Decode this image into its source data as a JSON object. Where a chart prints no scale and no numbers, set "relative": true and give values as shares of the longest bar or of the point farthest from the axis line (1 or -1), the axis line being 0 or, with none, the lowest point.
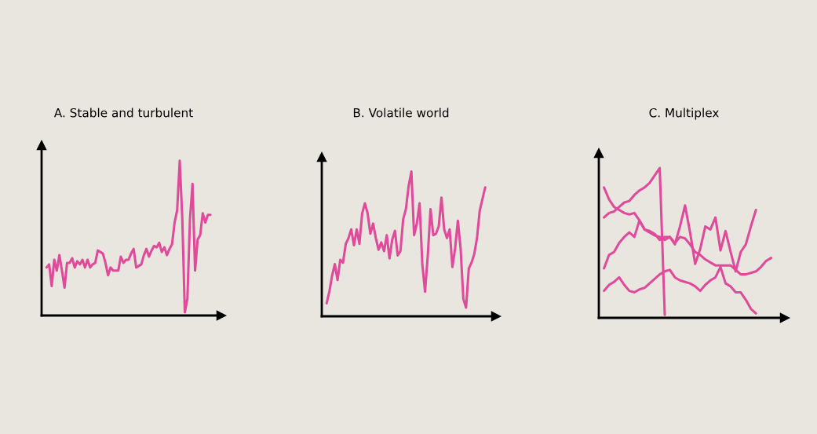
{
  "chart_data": [
    {
      "type": "line",
      "title": "A. Stable and turbulent",
      "relative": true,
      "categories": [
        null,
        null,
        null,
        null,
        null,
        null,
        null,
        null,
        null,
        null,
        null,
        null,
        null,
        null,
        null,
        null,
        null,
        null,
        null,
        null,
        null,
        null,
        null,
        null,
        null,
        null,
        null,
        null,
        null,
        null,
        null,
        null,
        null,
        null,
        null,
        null,
        null,
        null,
        null,
        null,
        null,
        null,
        null,
        null,
        null,
        null,
        null,
        null,
        null,
        null,
        null,
        null,
        null,
        null,
        null,
        null,
        null,
        null,
        null,
        null,
        null,
        null,
        null,
        null,
        null
      ],
      "series": [
        {
          "color": "#df4a9b",
          "values": [
            0.31,
            0.33,
            0.19,
            0.36,
            0.29,
            0.39,
            0.29,
            0.18,
            0.34,
            0.34,
            0.37,
            0.31,
            0.35,
            0.33,
            0.36,
            0.31,
            0.36,
            0.31,
            0.33,
            0.34,
            0.42,
            0.41,
            0.4,
            0.34,
            0.26,
            0.31,
            0.29,
            0.29,
            0.29,
            0.38,
            0.34,
            0.36,
            0.36,
            0.4,
            0.43,
            0.31,
            0.32,
            0.33,
            0.39,
            0.43,
            0.38,
            0.42,
            0.45,
            0.44,
            0.47,
            0.41,
            0.44,
            0.39,
            0.43,
            0.46,
            0.6,
            0.68,
            1.0,
            0.63,
            0.02,
            0.11,
            0.62,
            0.85,
            0.29,
            0.49,
            0.52,
            0.66,
            0.6,
            0.65,
            0.65
          ]
        }
      ]
    },
    {
      "type": "line",
      "title": "B. Volatile world",
      "relative": true,
      "categories": [
        null,
        null,
        null,
        null,
        null,
        null,
        null,
        null,
        null,
        null,
        null,
        null,
        null,
        null,
        null,
        null,
        null,
        null,
        null,
        null,
        null,
        null,
        null,
        null,
        null,
        null,
        null,
        null,
        null,
        null,
        null,
        null,
        null,
        null,
        null,
        null,
        null,
        null,
        null,
        null,
        null,
        null,
        null,
        null,
        null,
        null,
        null,
        null,
        null,
        null,
        null,
        null,
        null,
        null,
        null,
        null,
        null,
        null,
        null
      ],
      "series": [
        {
          "color": "#df4a9b",
          "values": [
            0.09,
            0.17,
            0.28,
            0.36,
            0.25,
            0.39,
            0.37,
            0.5,
            0.54,
            0.6,
            0.49,
            0.6,
            0.5,
            0.71,
            0.78,
            0.71,
            0.57,
            0.64,
            0.54,
            0.46,
            0.51,
            0.45,
            0.56,
            0.4,
            0.53,
            0.59,
            0.42,
            0.45,
            0.67,
            0.74,
            0.9,
            1.0,
            0.56,
            0.64,
            0.78,
            0.36,
            0.17,
            0.42,
            0.74,
            0.56,
            0.57,
            0.62,
            0.82,
            0.6,
            0.54,
            0.6,
            0.34,
            0.47,
            0.66,
            0.47,
            0.12,
            0.06,
            0.33,
            0.37,
            0.43,
            0.54,
            0.73,
            0.81,
            0.89
          ]
        }
      ]
    },
    {
      "type": "line",
      "title": "C. Multiplex",
      "relative": true,
      "categories": [
        null,
        null,
        null,
        null,
        null,
        null,
        null,
        null,
        null,
        null,
        null,
        null,
        null,
        null,
        null,
        null,
        null,
        null,
        null,
        null,
        null,
        null,
        null,
        null,
        null,
        null,
        null,
        null,
        null,
        null,
        null,
        null,
        null,
        null
      ],
      "series": [
        {
          "color": "#df4a9b",
          "values": [
            0.67,
            0.7,
            0.71,
            0.74,
            0.77,
            0.78,
            0.82,
            0.85,
            0.87,
            0.9,
            0.95,
            1.0,
            0.02,
            null,
            null,
            null,
            null,
            null,
            null,
            null,
            null,
            null,
            null,
            null,
            null,
            null,
            null,
            null,
            null,
            null,
            null,
            null,
            null,
            null
          ]
        },
        {
          "color": "#df4a9b",
          "values": [
            0.87,
            0.79,
            0.74,
            0.72,
            0.7,
            0.69,
            0.7,
            0.65,
            0.59,
            0.58,
            0.56,
            0.52,
            0.54,
            0.54,
            0.5,
            0.54,
            0.53,
            0.49,
            0.44,
            0.42,
            0.39,
            0.37,
            0.35,
            0.35,
            0.35,
            0.35,
            0.32,
            0.29,
            0.29,
            0.3,
            0.31,
            0.34,
            0.38,
            0.4
          ]
        },
        {
          "color": "#df4a9b",
          "values": [
            0.33,
            0.42,
            0.44,
            0.5,
            0.54,
            0.57,
            0.54,
            0.65,
            0.59,
            0.57,
            0.55,
            0.54,
            0.52,
            0.54,
            0.49,
            0.61,
            0.75,
            0.57,
            0.36,
            0.46,
            0.61,
            0.59,
            0.67,
            0.45,
            0.58,
            0.44,
            0.31,
            0.44,
            0.49,
            0.61,
            0.72,
            null,
            null,
            null
          ]
        },
        {
          "color": "#df4a9b",
          "values": [
            0.18,
            0.22,
            0.24,
            0.27,
            0.22,
            0.18,
            0.17,
            0.19,
            0.2,
            0.23,
            0.26,
            0.29,
            0.31,
            0.32,
            0.27,
            0.25,
            0.24,
            0.23,
            0.21,
            0.18,
            0.22,
            0.25,
            0.27,
            0.34,
            0.23,
            0.21,
            0.17,
            0.17,
            0.12,
            0.06,
            0.03,
            null,
            null,
            null
          ]
        }
      ]
    }
  ]
}
